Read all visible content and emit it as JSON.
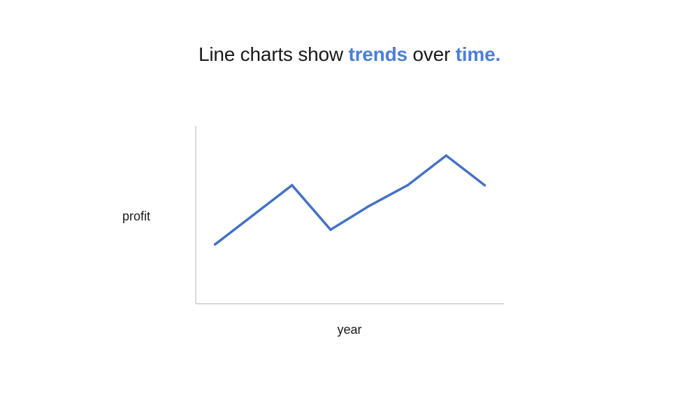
{
  "title": {
    "part1": "Line charts show ",
    "highlight1": "trends",
    "part2": " over ",
    "highlight2": "time."
  },
  "colors": {
    "accent": "#4a7fd6",
    "line": "#4472c4",
    "axis": "#d9d9d9",
    "text": "#1a1a1a"
  },
  "chart_data": {
    "type": "line",
    "title": "",
    "xlabel": "year",
    "ylabel": "profit",
    "x": [
      1,
      2,
      3,
      4,
      5,
      6,
      7,
      8
    ],
    "series": [
      {
        "values": [
          2.0,
          3.0,
          4.0,
          2.5,
          3.3,
          4.0,
          5.0,
          4.0
        ]
      }
    ],
    "xlim": [
      0.5,
      8.5
    ],
    "ylim": [
      0,
      6
    ],
    "grid": false,
    "legend": "none"
  }
}
